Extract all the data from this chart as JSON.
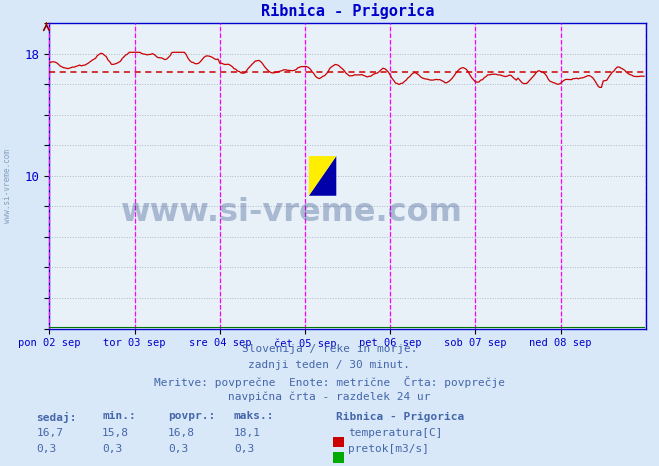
{
  "title": "Ribnica - Prigorica",
  "title_color": "#0000cc",
  "bg_color": "#d8e8f8",
  "plot_bg_color": "#e8f0f8",
  "grid_color": "#b0b8c8",
  "y_min": 0,
  "y_max": 20,
  "x_labels": [
    "pon 02 sep",
    "tor 03 sep",
    "sre 04 sep",
    "čet 05 sep",
    "pet 06 sep",
    "sob 07 sep",
    "ned 08 sep"
  ],
  "avg_line_value": 16.8,
  "avg_line_color": "#cc0000",
  "temp_line_color": "#cc0000",
  "flow_line_color": "#007700",
  "vline_color": "#ff00ff",
  "ax_color": "#0000cc",
  "footer_text1": "Slovenija / reke in morje.",
  "footer_text2": "zadnji teden / 30 minut.",
  "footer_text3": "Meritve: povprečne  Enote: metrične  Črta: povprečje",
  "footer_text4": "navpična črta - razdelek 24 ur",
  "footer_color": "#4466aa",
  "label_sedaj": "sedaj",
  "label_min": "min.",
  "label_povpr": "povpr.",
  "label_maks": "maks.",
  "label_location": "Ribnica - Prigorica",
  "temp_sedaj": "16,7",
  "temp_min": "15,8",
  "temp_povpr": "16,8",
  "temp_maks": "18,1",
  "flow_sedaj": "0,3",
  "flow_min": "0,3",
  "flow_povpr": "0,3",
  "flow_maks": "0,3",
  "legend_temp": "temperatura[C]",
  "legend_flow": "pretok[m3/s]",
  "watermark": "www.si-vreme.com",
  "watermark_color": "#1a3a7a",
  "sidebar_text": "www.si-vreme.com",
  "sidebar_color": "#6688aa",
  "logo_yellow": "#ffee00",
  "logo_cyan": "#00ccff",
  "logo_blue": "#0000aa"
}
